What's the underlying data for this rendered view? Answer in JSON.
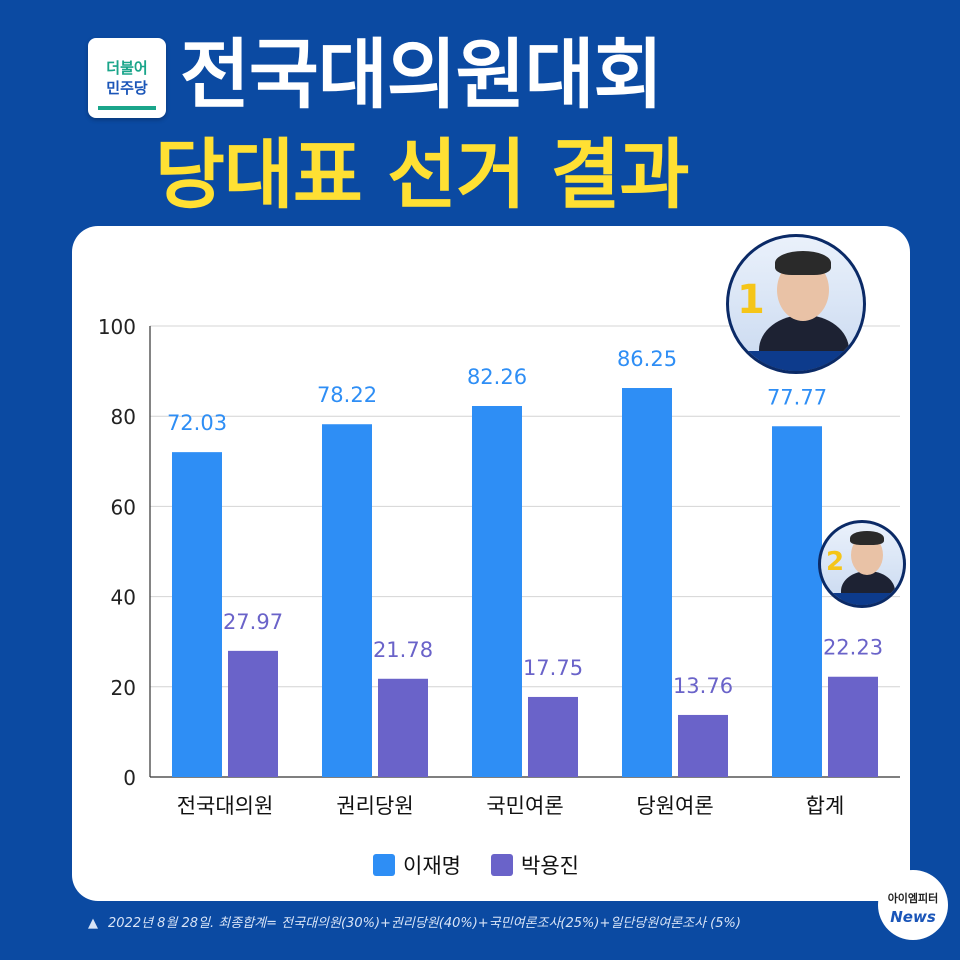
{
  "header": {
    "logo_line1": "더불어",
    "logo_line2": "민주당",
    "title_line1": "전국대의원대회",
    "title_line2": "당대표 선거 결과"
  },
  "colors": {
    "background": "#0b4aa2",
    "title_yellow": "#ffe033",
    "series_1": "#2e8ef5",
    "series_2": "#6a63c9"
  },
  "avatars": {
    "first_number": "1",
    "second_number": "2"
  },
  "chart_data": {
    "type": "bar",
    "categories": [
      "전국대의원",
      "권리당원",
      "국민여론",
      "당원여론",
      "합계"
    ],
    "series": [
      {
        "name": "이재명",
        "color": "#2e8ef5",
        "values": [
          72.03,
          78.22,
          82.26,
          86.25,
          77.77
        ]
      },
      {
        "name": "박용진",
        "color": "#6a63c9",
        "values": [
          27.97,
          21.78,
          17.75,
          13.76,
          22.23
        ]
      }
    ],
    "ylim": [
      0,
      100
    ],
    "yticks": [
      0,
      20,
      40,
      60,
      80,
      100
    ],
    "grid": true,
    "legend": "bottom"
  },
  "footnote": "2022년 8월 28일. 최종합계= 전국대의원(30%)+권리당원(40%)+국민여론조사(25%)+일단당원여론조사 (5%)",
  "badge": {
    "line1": "아이엠피터",
    "line2": "News"
  }
}
